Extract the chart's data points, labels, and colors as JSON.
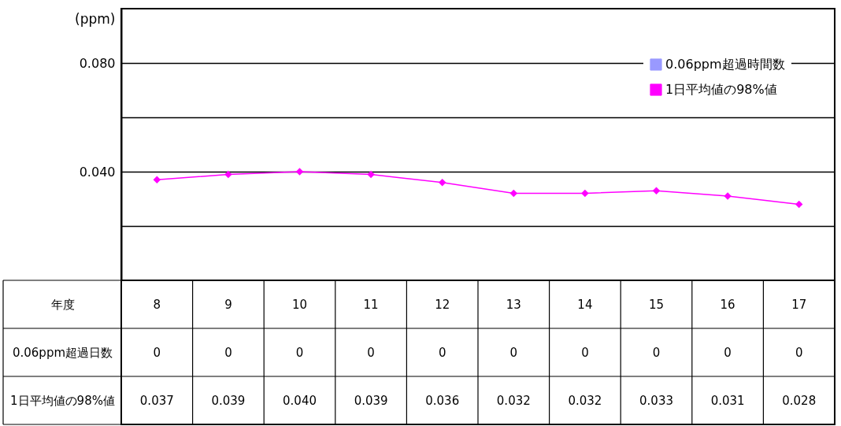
{
  "chart_data": {
    "type": "line",
    "ylabel": "(ppm)",
    "xlabel": "年度",
    "categories": [
      "8",
      "9",
      "10",
      "11",
      "12",
      "13",
      "14",
      "15",
      "16",
      "17"
    ],
    "series": [
      {
        "name": "0.06ppm超過時間数",
        "type": "bar",
        "color": "#9999ff",
        "values": [
          0,
          0,
          0,
          0,
          0,
          0,
          0,
          0,
          0,
          0
        ],
        "value_labels": [
          "0",
          "0",
          "0",
          "0",
          "0",
          "0",
          "0",
          "0",
          "0",
          "0"
        ]
      },
      {
        "name": "1日平均値の98%値",
        "color": "#ff00ff",
        "values": [
          0.037,
          0.039,
          0.04,
          0.039,
          0.036,
          0.032,
          0.032,
          0.033,
          0.031,
          0.028
        ],
        "value_labels": [
          "0.037",
          "0.039",
          "0.040",
          "0.039",
          "0.036",
          "0.032",
          "0.032",
          "0.033",
          "0.031",
          "0.028"
        ]
      }
    ],
    "annotations": [
      "0.06ppm超過日数",
      "1日平均値の98%値"
    ],
    "ylim": [
      0,
      0.1
    ],
    "yticks": [
      {
        "value": 0.02,
        "label": null
      },
      {
        "value": 0.04,
        "label": "0.040"
      },
      {
        "value": 0.06,
        "label": null
      },
      {
        "value": 0.08,
        "label": "0.080"
      }
    ],
    "grid": "y",
    "legend": "top right",
    "marker": "diamond",
    "line_style": "solid"
  }
}
